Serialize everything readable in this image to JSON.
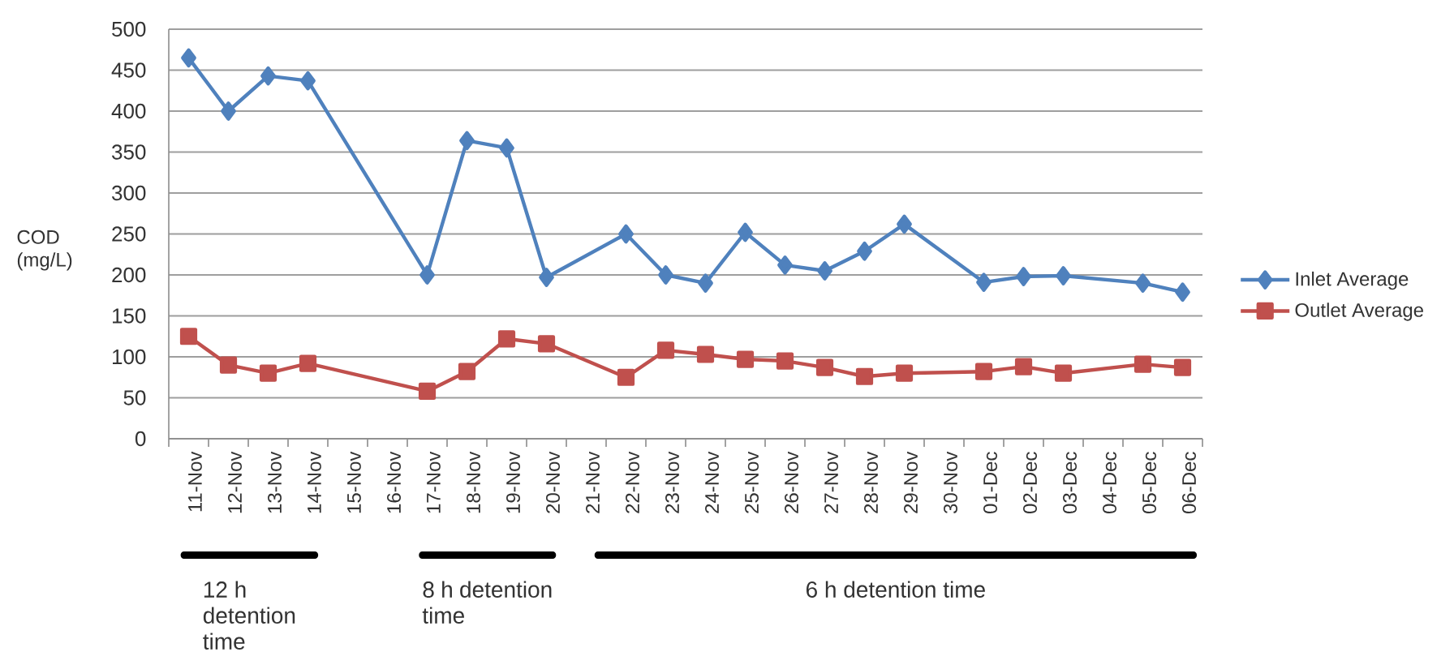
{
  "chart_data": {
    "type": "line",
    "ylabel": "COD (mg/L)",
    "categories": [
      "11-Nov",
      "12-Nov",
      "13-Nov",
      "14-Nov",
      "15-Nov",
      "16-Nov",
      "17-Nov",
      "18-Nov",
      "19-Nov",
      "20-Nov",
      "21-Nov",
      "22-Nov",
      "23-Nov",
      "24-Nov",
      "25-Nov",
      "26-Nov",
      "27-Nov",
      "28-Nov",
      "29-Nov",
      "30-Nov",
      "01-Dec",
      "02-Dec",
      "03-Dec",
      "04-Dec",
      "05-Dec",
      "06-Dec"
    ],
    "series": [
      {
        "name": "Inlet Average",
        "color": "#4f81bd",
        "marker": "diamond",
        "values": [
          465,
          400,
          443,
          437,
          null,
          null,
          200,
          364,
          355,
          197,
          null,
          250,
          200,
          190,
          252,
          212,
          205,
          229,
          262,
          null,
          191,
          198,
          199,
          null,
          190,
          179
        ]
      },
      {
        "name": "Outlet Average",
        "color": "#c0504d",
        "marker": "square",
        "values": [
          125,
          90,
          80,
          92,
          null,
          null,
          58,
          82,
          122,
          116,
          null,
          75,
          108,
          103,
          97,
          95,
          87,
          76,
          80,
          null,
          82,
          88,
          80,
          null,
          91,
          87
        ]
      }
    ],
    "ylim": [
      0,
      500
    ],
    "yticks": [
      0,
      50,
      100,
      150,
      200,
      250,
      300,
      350,
      400,
      450,
      500
    ],
    "grid": "y",
    "legend": "right",
    "annotations": [
      "12 h detention time",
      "8 h detention time",
      "6 h detention time"
    ]
  }
}
